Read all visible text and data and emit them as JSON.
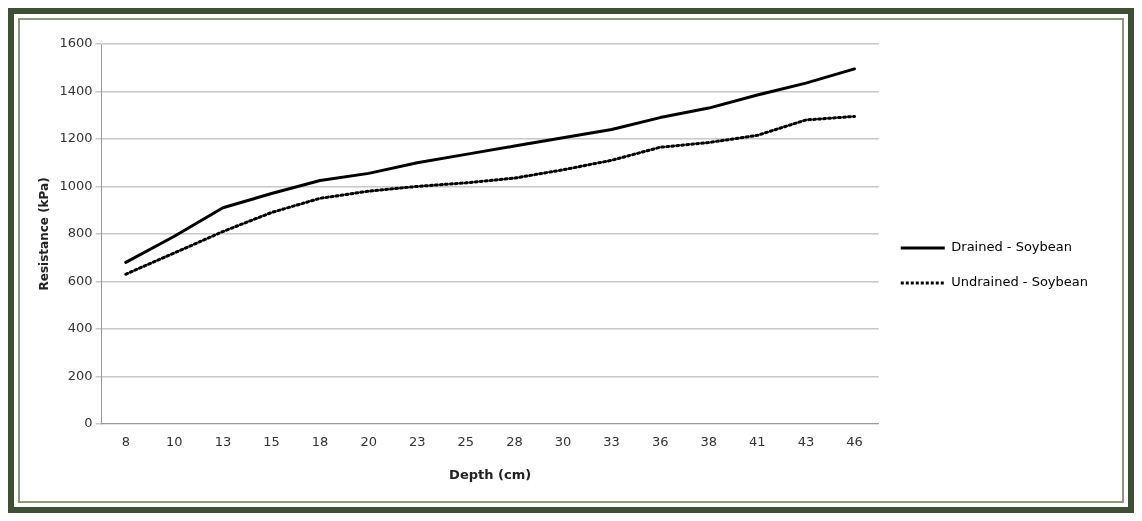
{
  "chart_data": {
    "type": "line",
    "xlabel": "Depth (cm)",
    "ylabel": "Resistance (kPa)",
    "categories": [
      "8",
      "10",
      "13",
      "15",
      "18",
      "20",
      "23",
      "25",
      "28",
      "30",
      "33",
      "36",
      "38",
      "41",
      "43",
      "46"
    ],
    "series": [
      {
        "name": "Drained - Soybean",
        "color": "#000000",
        "line_style": "solid",
        "values": [
          680,
          790,
          910,
          970,
          1025,
          1055,
          1100,
          1135,
          1170,
          1205,
          1240,
          1290,
          1330,
          1385,
          1435,
          1495
        ]
      },
      {
        "name": "Undrained - Soybean",
        "color": "#000000",
        "line_style": "dotted",
        "values": [
          630,
          720,
          810,
          890,
          950,
          980,
          1000,
          1015,
          1035,
          1070,
          1110,
          1165,
          1185,
          1215,
          1280,
          1295
        ]
      }
    ],
    "ylim": [
      0,
      1600
    ],
    "yticks": [
      0,
      200,
      400,
      600,
      800,
      1000,
      1200,
      1400,
      1600
    ],
    "grid": "y",
    "legend": "right",
    "marker": "none"
  }
}
